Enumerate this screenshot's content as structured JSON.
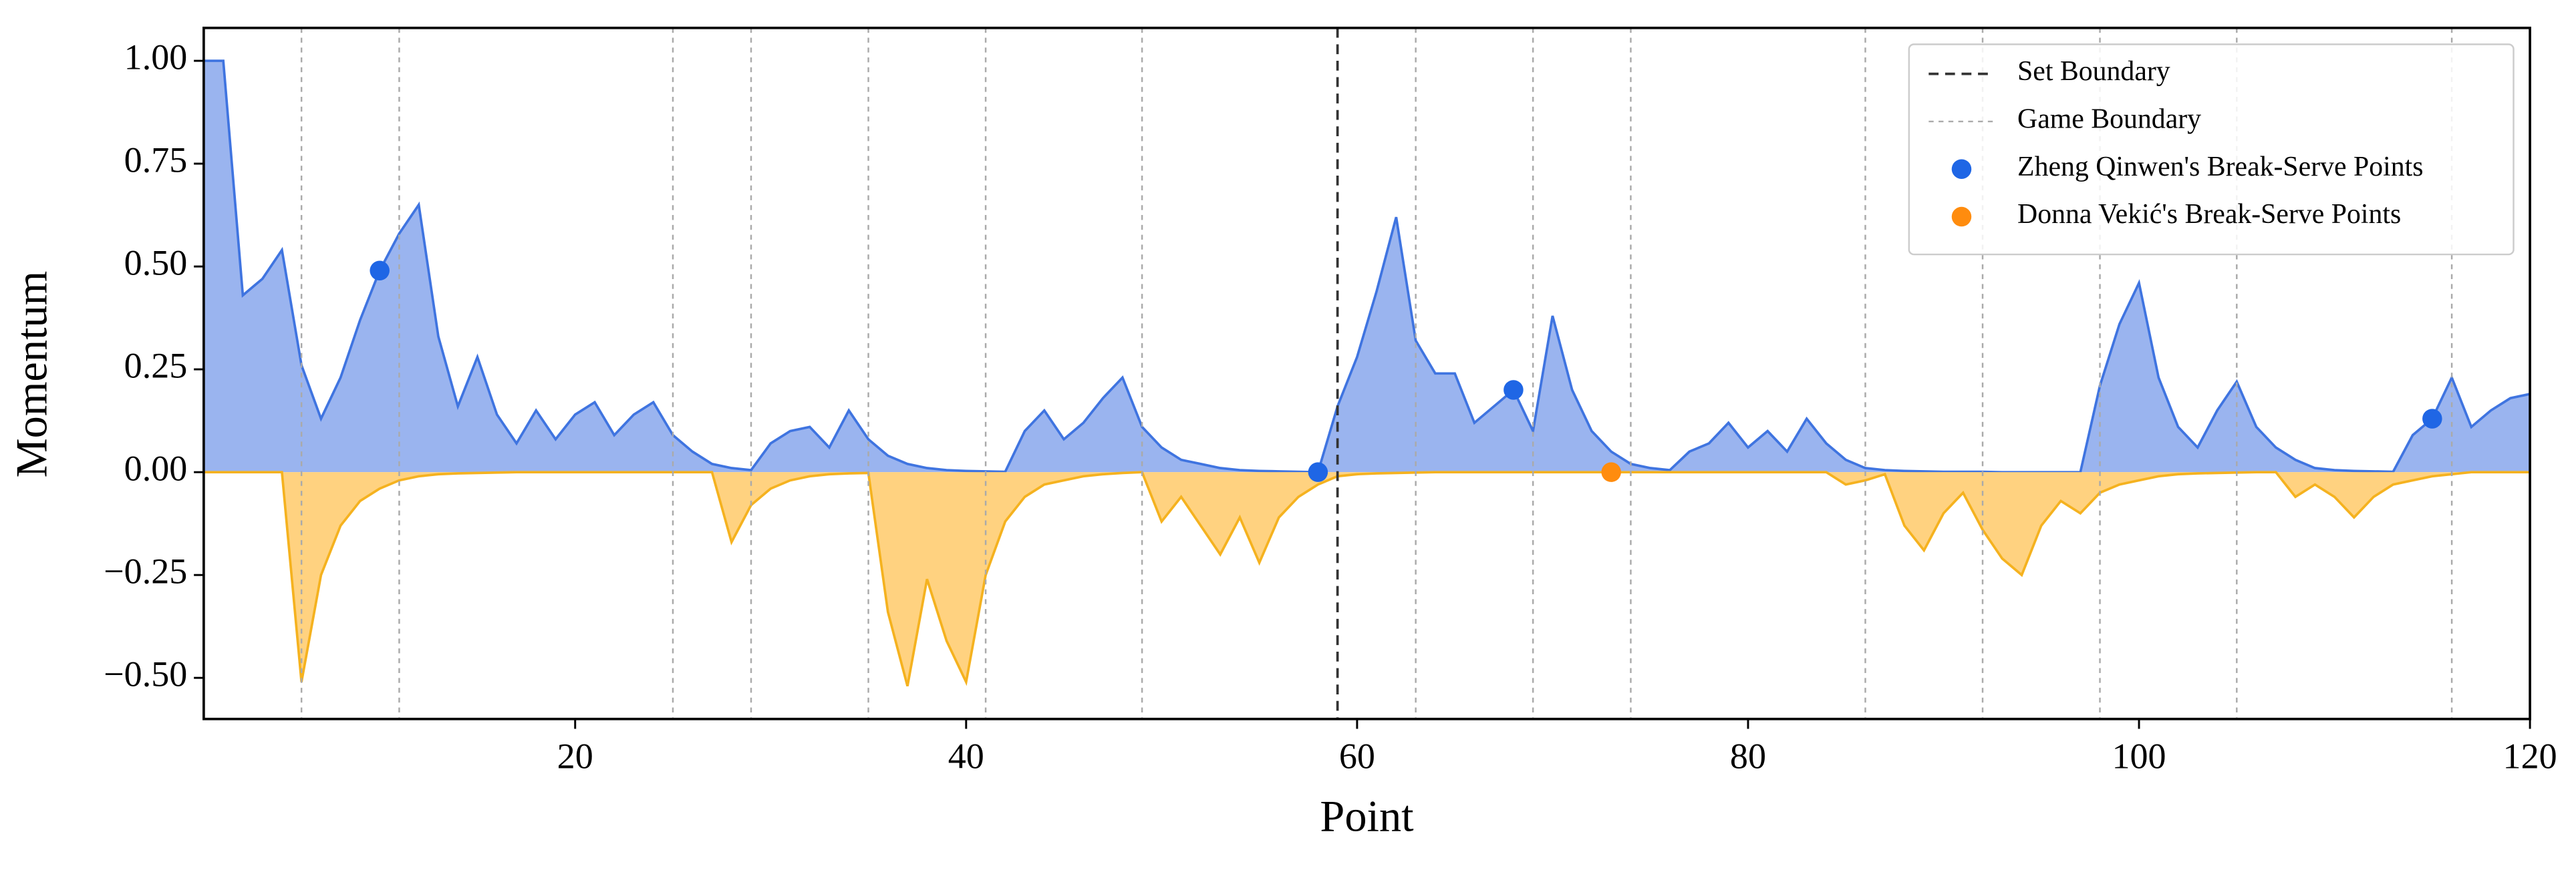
{
  "chart_data": {
    "type": "area",
    "xlabel": "Point",
    "ylabel": "Momentum",
    "x": [
      1,
      2,
      3,
      4,
      5,
      6,
      7,
      8,
      9,
      10,
      11,
      12,
      13,
      14,
      15,
      16,
      17,
      18,
      19,
      20,
      21,
      22,
      23,
      24,
      25,
      26,
      27,
      28,
      29,
      30,
      31,
      32,
      33,
      34,
      35,
      36,
      37,
      38,
      39,
      40,
      41,
      42,
      43,
      44,
      45,
      46,
      47,
      48,
      49,
      50,
      51,
      52,
      53,
      54,
      55,
      56,
      57,
      58,
      59,
      60,
      61,
      62,
      63,
      64,
      65,
      66,
      67,
      68,
      69,
      70,
      71,
      72,
      73,
      74,
      75,
      76,
      77,
      78,
      79,
      80,
      81,
      82,
      83,
      84,
      85,
      86,
      87,
      88,
      89,
      90,
      91,
      92,
      93,
      94,
      95,
      96,
      97,
      98,
      99,
      100,
      101,
      102,
      103,
      104,
      105,
      106,
      107,
      108,
      109,
      110,
      111,
      112,
      113,
      114,
      115,
      116,
      117,
      118,
      119,
      120
    ],
    "series": [
      {
        "color": "#3f74e0",
        "fill": "#9ab4ef",
        "values": [
          1.0,
          1.0,
          0.43,
          0.47,
          0.54,
          0.26,
          0.13,
          0.23,
          0.37,
          0.49,
          0.58,
          0.65,
          0.33,
          0.16,
          0.28,
          0.14,
          0.07,
          0.15,
          0.08,
          0.14,
          0.17,
          0.09,
          0.14,
          0.17,
          0.09,
          0.05,
          0.02,
          0.01,
          0.005,
          0.07,
          0.1,
          0.11,
          0.06,
          0.15,
          0.08,
          0.04,
          0.02,
          0.01,
          0.005,
          0.003,
          0.002,
          0.001,
          0.1,
          0.15,
          0.08,
          0.12,
          0.18,
          0.23,
          0.11,
          0.06,
          0.03,
          0.02,
          0.01,
          0.005,
          0.003,
          0.002,
          0.001,
          0,
          0.16,
          0.28,
          0.44,
          0.62,
          0.32,
          0.24,
          0.24,
          0.12,
          0.16,
          0.2,
          0.1,
          0.38,
          0.2,
          0.1,
          0.05,
          0.02,
          0.01,
          0.005,
          0.05,
          0.07,
          0.12,
          0.06,
          0.1,
          0.05,
          0.13,
          0.07,
          0.03,
          0.01,
          0.005,
          0.003,
          0.002,
          0.001,
          0.001,
          0.001,
          0,
          0,
          0,
          0,
          0,
          0.21,
          0.36,
          0.46,
          0.23,
          0.11,
          0.06,
          0.15,
          0.22,
          0.11,
          0.06,
          0.03,
          0.01,
          0.005,
          0.003,
          0.002,
          0.001,
          0.09,
          0.13,
          0.23,
          0.11,
          0.15,
          0.18,
          0.19
        ]
      },
      {
        "color": "#f5b21f",
        "fill": "#ffd280",
        "values": [
          0,
          0,
          0,
          0,
          0,
          -0.51,
          -0.25,
          -0.13,
          -0.07,
          -0.04,
          -0.02,
          -0.01,
          -0.005,
          -0.003,
          -0.002,
          -0.001,
          0,
          0,
          0,
          0,
          0,
          0,
          0,
          0,
          0,
          0,
          0,
          -0.17,
          -0.08,
          -0.04,
          -0.02,
          -0.01,
          -0.005,
          -0.003,
          -0.002,
          -0.34,
          -0.52,
          -0.26,
          -0.41,
          -0.51,
          -0.25,
          -0.12,
          -0.06,
          -0.03,
          -0.02,
          -0.01,
          -0.005,
          -0.002,
          0,
          -0.12,
          -0.06,
          -0.13,
          -0.2,
          -0.11,
          -0.22,
          -0.11,
          -0.06,
          -0.03,
          -0.01,
          -0.005,
          -0.003,
          -0.002,
          -0.001,
          0,
          0,
          0,
          0,
          0,
          0,
          0,
          0,
          0,
          0,
          0,
          0,
          0,
          0,
          0,
          0,
          0,
          0,
          0,
          0,
          0,
          -0.03,
          -0.02,
          -0.005,
          -0.13,
          -0.19,
          -0.1,
          -0.05,
          -0.14,
          -0.21,
          -0.25,
          -0.13,
          -0.07,
          -0.1,
          -0.05,
          -0.03,
          -0.02,
          -0.01,
          -0.005,
          -0.003,
          -0.002,
          -0.001,
          0,
          0,
          -0.06,
          -0.03,
          -0.06,
          -0.11,
          -0.06,
          -0.03,
          -0.02,
          -0.01,
          -0.005,
          0,
          0,
          0,
          0
        ]
      }
    ],
    "boundaries": [
      {
        "name": "Set Boundary",
        "color": "#333333",
        "dash": "6,4",
        "x": [
          59
        ]
      },
      {
        "name": "Game Boundary",
        "color": "#aaaaaa",
        "dash": "3,3",
        "x": [
          6,
          11,
          25,
          29,
          35,
          41,
          49,
          63,
          69,
          74,
          86,
          92,
          98,
          105,
          116
        ]
      }
    ],
    "points": [
      {
        "name": "Zheng Qinwen's Break-Serve Points",
        "color": "#1f66e5",
        "x": [
          10,
          58,
          68,
          115
        ],
        "y": [
          0.49,
          0,
          0.2,
          0.13
        ]
      },
      {
        "name": "Donna Vekić's Break-Serve Points",
        "color": "#ff8c0e",
        "x": [
          73
        ],
        "y": [
          0
        ]
      }
    ],
    "legend": "upper right",
    "xlim": [
      1,
      120
    ],
    "ylim": [
      -0.6,
      1.08
    ],
    "xticks": [
      20,
      40,
      60,
      80,
      100,
      120
    ],
    "yticks": [
      {
        "value": -0.5,
        "label": "−0.50"
      },
      {
        "value": -0.25,
        "label": "−0.25"
      },
      {
        "value": 0,
        "label": "0.00"
      },
      {
        "value": 0.25,
        "label": "0.25"
      },
      {
        "value": 0.5,
        "label": "0.50"
      },
      {
        "value": 0.75,
        "label": "0.75"
      },
      {
        "value": 1.0,
        "label": "1.00"
      }
    ]
  }
}
